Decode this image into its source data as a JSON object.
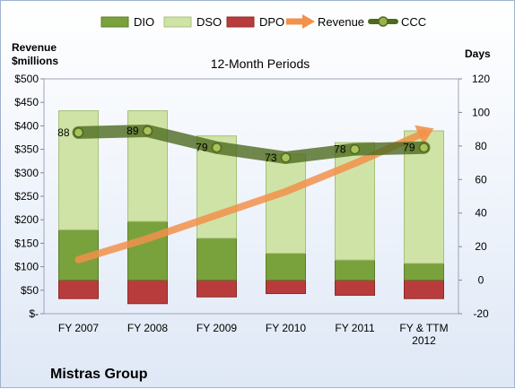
{
  "chart_data": {
    "type": "bar",
    "title": "12-Month Periods",
    "company": "Mistras Group",
    "categories": [
      [
        "FY 2007"
      ],
      [
        "FY 2008"
      ],
      [
        "FY 2009"
      ],
      [
        "FY 2010"
      ],
      [
        "FY 2011"
      ],
      [
        "FY & TTM",
        "2012"
      ]
    ],
    "left_axis": {
      "label_lines": [
        "Revenue",
        "$millions"
      ],
      "range": [
        0,
        500
      ],
      "ticks": [
        0,
        50,
        100,
        150,
        200,
        250,
        300,
        350,
        400,
        450,
        500
      ],
      "tick_labels": [
        "$-",
        "$50",
        "$100",
        "$150",
        "$200",
        "$250",
        "$300",
        "$350",
        "$400",
        "$450",
        "$500"
      ]
    },
    "right_axis": {
      "label": "Days",
      "range": [
        -20,
        120
      ],
      "ticks": [
        -20,
        0,
        20,
        40,
        60,
        80,
        100,
        120
      ],
      "tick_labels": [
        "-20",
        "0",
        "20",
        "40",
        "60",
        "80",
        "100",
        "120"
      ]
    },
    "series": [
      {
        "name": "DIO",
        "axis": "days",
        "kind": "stacked-bar",
        "values": [
          30,
          35,
          25,
          16,
          12,
          10
        ],
        "color": "#7aa23c"
      },
      {
        "name": "DSO",
        "axis": "days",
        "kind": "stacked-bar",
        "values": [
          71,
          66,
          61,
          59,
          70,
          79
        ],
        "color": "#cfe3a6"
      },
      {
        "name": "DPO",
        "axis": "days",
        "kind": "negative-bar",
        "values": [
          11,
          14,
          10,
          8,
          9,
          11
        ],
        "color": "#b93c3c"
      },
      {
        "name": "Revenue",
        "axis": "revenue",
        "kind": "arrow-line",
        "values": [
          115,
          160,
          210,
          260,
          320,
          385
        ],
        "color": "#f2914a"
      },
      {
        "name": "CCC",
        "axis": "days",
        "kind": "line-markers",
        "values": [
          88,
          89,
          79,
          73,
          78,
          79
        ],
        "color": "#4e6a1f"
      }
    ],
    "ccc_labels": [
      "88",
      "89",
      "79",
      "73",
      "78",
      "79"
    ],
    "legend": "top",
    "grid": false
  }
}
